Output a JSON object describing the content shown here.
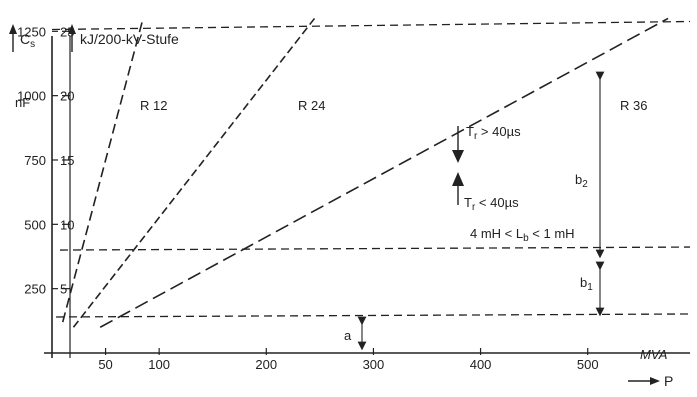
{
  "chart_data": {
    "type": "line",
    "y_axis_left": {
      "label_symbol": "C",
      "label_subscript": "s",
      "unit": "nF",
      "ticks": [
        "250",
        "500",
        "750",
        "1000",
        "1250"
      ],
      "tick_values": [
        250,
        500,
        750,
        1000,
        1250
      ]
    },
    "y_axis_right": {
      "label": "kJ/200-kV-Stufe",
      "ticks": [
        "5",
        "10",
        "15",
        "20",
        "25"
      ],
      "tick_values": [
        5,
        10,
        15,
        20,
        25
      ]
    },
    "x_axis": {
      "ticks": [
        "50",
        "100",
        "200",
        "300",
        "400",
        "500"
      ],
      "tick_values": [
        50,
        100,
        200,
        300,
        400,
        500
      ],
      "unit": "MVA",
      "label": "P",
      "range": [
        0,
        560
      ]
    },
    "y_range_nF": [
      0,
      1360
    ],
    "series": [
      {
        "name": "R 12",
        "points": [
          [
            10,
            120
          ],
          [
            85,
            1300
          ]
        ]
      },
      {
        "name": "R 24",
        "points": [
          [
            20,
            100
          ],
          [
            245,
            1300
          ]
        ]
      },
      {
        "name": "R 36",
        "points": [
          [
            45,
            100
          ],
          [
            575,
            1300
          ]
        ]
      }
    ],
    "horizontal_lines": [
      {
        "y": 1257
      },
      {
        "y": 400
      },
      {
        "y": 140
      }
    ],
    "annotations": {
      "a": "a",
      "b1": "b",
      "b1_sub": "1",
      "b2": "b",
      "b2_sub": "2",
      "tr_above": "T",
      "tr_above_sub": "r",
      "tr_above_rest": " > 40µs",
      "tr_below": "T",
      "tr_below_sub": "r",
      "tr_below_rest": " < 40µs",
      "inductance_pre": "4 mH < L",
      "inductance_sub": "b",
      "inductance_post": " < 1 mH"
    },
    "grid": false
  }
}
